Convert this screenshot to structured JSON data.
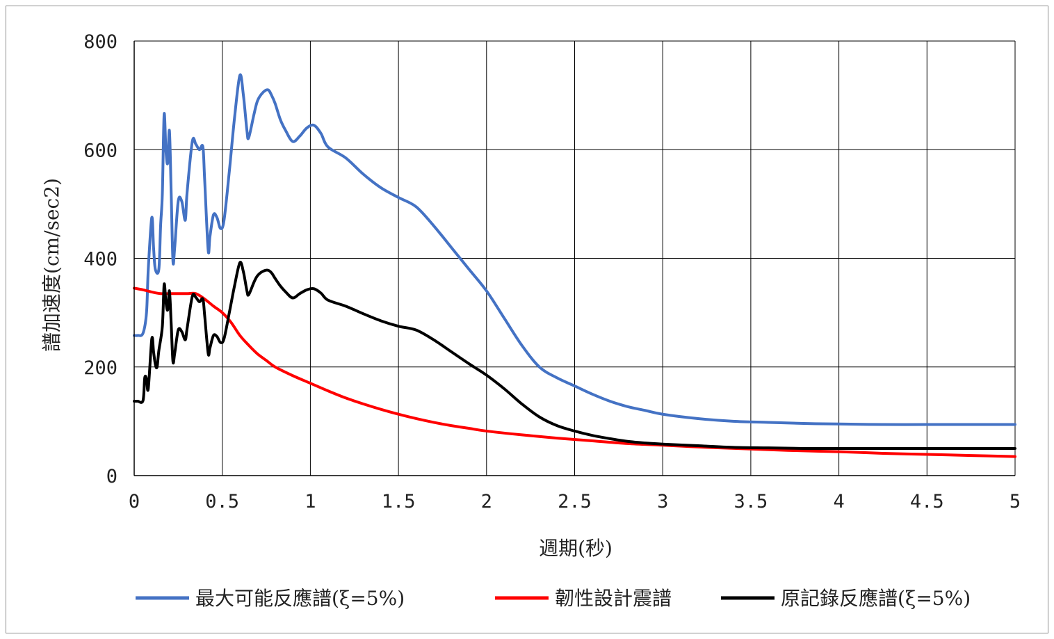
{
  "chart_data": {
    "type": "line",
    "title": "",
    "xlabel": "週期(秒)",
    "ylabel": "譜加速度(cm/sec2)",
    "xlim": [
      0,
      5
    ],
    "ylim": [
      0,
      800
    ],
    "x_ticks": [
      0,
      0.5,
      1,
      1.5,
      2,
      2.5,
      3,
      3.5,
      4,
      4.5,
      5
    ],
    "x_tick_labels": [
      "0",
      "0.5",
      "1",
      "1.5",
      "2",
      "2.5",
      "3",
      "3.5",
      "4",
      "4.5",
      "5"
    ],
    "y_ticks": [
      0,
      200,
      400,
      600,
      800
    ],
    "y_tick_labels": [
      "0",
      "200",
      "400",
      "600",
      "800"
    ],
    "grid": true,
    "legend_position": "bottom",
    "series": [
      {
        "name": "最大可能反應譜(ξ=5%)",
        "color": "#4472C4",
        "points": [
          [
            0,
            258
          ],
          [
            0.02,
            258
          ],
          [
            0.05,
            262
          ],
          [
            0.07,
            300
          ],
          [
            0.08,
            380
          ],
          [
            0.1,
            475
          ],
          [
            0.11,
            420
          ],
          [
            0.12,
            380
          ],
          [
            0.14,
            380
          ],
          [
            0.15,
            460
          ],
          [
            0.16,
            520
          ],
          [
            0.17,
            665
          ],
          [
            0.18,
            600
          ],
          [
            0.19,
            575
          ],
          [
            0.2,
            635
          ],
          [
            0.21,
            520
          ],
          [
            0.22,
            395
          ],
          [
            0.23,
            420
          ],
          [
            0.25,
            505
          ],
          [
            0.27,
            505
          ],
          [
            0.29,
            470
          ],
          [
            0.3,
            520
          ],
          [
            0.33,
            615
          ],
          [
            0.35,
            610
          ],
          [
            0.37,
            600
          ],
          [
            0.39,
            605
          ],
          [
            0.4,
            545
          ],
          [
            0.42,
            415
          ],
          [
            0.43,
            440
          ],
          [
            0.45,
            480
          ],
          [
            0.47,
            475
          ],
          [
            0.49,
            455
          ],
          [
            0.51,
            470
          ],
          [
            0.54,
            560
          ],
          [
            0.57,
            660
          ],
          [
            0.6,
            737
          ],
          [
            0.62,
            700
          ],
          [
            0.64,
            635
          ],
          [
            0.65,
            622
          ],
          [
            0.68,
            665
          ],
          [
            0.7,
            690
          ],
          [
            0.73,
            705
          ],
          [
            0.76,
            710
          ],
          [
            0.78,
            700
          ],
          [
            0.8,
            685
          ],
          [
            0.83,
            655
          ],
          [
            0.86,
            635
          ],
          [
            0.9,
            615
          ],
          [
            0.94,
            625
          ],
          [
            0.98,
            640
          ],
          [
            1.02,
            645
          ],
          [
            1.06,
            630
          ],
          [
            1.1,
            605
          ],
          [
            1.2,
            585
          ],
          [
            1.3,
            555
          ],
          [
            1.4,
            530
          ],
          [
            1.5,
            512
          ],
          [
            1.6,
            495
          ],
          [
            1.7,
            460
          ],
          [
            1.8,
            420
          ],
          [
            1.9,
            380
          ],
          [
            2.0,
            340
          ],
          [
            2.1,
            290
          ],
          [
            2.2,
            240
          ],
          [
            2.3,
            200
          ],
          [
            2.4,
            180
          ],
          [
            2.5,
            165
          ],
          [
            2.6,
            150
          ],
          [
            2.7,
            137
          ],
          [
            2.8,
            127
          ],
          [
            2.9,
            120
          ],
          [
            3.0,
            113
          ],
          [
            3.2,
            105
          ],
          [
            3.4,
            100
          ],
          [
            3.6,
            98
          ],
          [
            3.8,
            96
          ],
          [
            4.0,
            95
          ],
          [
            4.25,
            94
          ],
          [
            4.5,
            94
          ],
          [
            4.75,
            94
          ],
          [
            5.0,
            94
          ]
        ]
      },
      {
        "name": "韌性設計震譜",
        "color": "#FF0000",
        "points": [
          [
            0,
            345
          ],
          [
            0.05,
            342
          ],
          [
            0.1,
            338
          ],
          [
            0.15,
            335
          ],
          [
            0.2,
            335
          ],
          [
            0.25,
            335
          ],
          [
            0.3,
            335
          ],
          [
            0.35,
            335
          ],
          [
            0.4,
            325
          ],
          [
            0.45,
            312
          ],
          [
            0.5,
            300
          ],
          [
            0.55,
            282
          ],
          [
            0.6,
            258
          ],
          [
            0.65,
            240
          ],
          [
            0.7,
            224
          ],
          [
            0.75,
            212
          ],
          [
            0.8,
            200
          ],
          [
            0.9,
            184
          ],
          [
            1.0,
            170
          ],
          [
            1.1,
            156
          ],
          [
            1.2,
            143
          ],
          [
            1.3,
            132
          ],
          [
            1.4,
            122
          ],
          [
            1.5,
            113
          ],
          [
            1.6,
            105
          ],
          [
            1.7,
            98
          ],
          [
            1.8,
            92
          ],
          [
            1.9,
            87
          ],
          [
            2.0,
            82
          ],
          [
            2.2,
            75
          ],
          [
            2.4,
            69
          ],
          [
            2.6,
            64
          ],
          [
            2.8,
            59
          ],
          [
            3.0,
            56
          ],
          [
            3.25,
            52
          ],
          [
            3.5,
            49
          ],
          [
            3.75,
            46
          ],
          [
            4.0,
            44
          ],
          [
            4.25,
            41
          ],
          [
            4.5,
            39
          ],
          [
            4.75,
            37
          ],
          [
            5.0,
            35
          ]
        ]
      },
      {
        "name": "原記錄反應譜(ξ=5%)",
        "color": "#000000",
        "points": [
          [
            0,
            137
          ],
          [
            0.02,
            137
          ],
          [
            0.05,
            138
          ],
          [
            0.06,
            180
          ],
          [
            0.07,
            178
          ],
          [
            0.08,
            160
          ],
          [
            0.1,
            252
          ],
          [
            0.11,
            228
          ],
          [
            0.12,
            205
          ],
          [
            0.13,
            200
          ],
          [
            0.14,
            230
          ],
          [
            0.16,
            275
          ],
          [
            0.17,
            352
          ],
          [
            0.18,
            320
          ],
          [
            0.19,
            305
          ],
          [
            0.2,
            340
          ],
          [
            0.21,
            280
          ],
          [
            0.22,
            210
          ],
          [
            0.23,
            225
          ],
          [
            0.25,
            268
          ],
          [
            0.27,
            265
          ],
          [
            0.29,
            250
          ],
          [
            0.3,
            270
          ],
          [
            0.33,
            330
          ],
          [
            0.35,
            328
          ],
          [
            0.37,
            320
          ],
          [
            0.39,
            325
          ],
          [
            0.4,
            295
          ],
          [
            0.42,
            225
          ],
          [
            0.43,
            235
          ],
          [
            0.45,
            258
          ],
          [
            0.47,
            256
          ],
          [
            0.49,
            245
          ],
          [
            0.51,
            252
          ],
          [
            0.54,
            300
          ],
          [
            0.57,
            350
          ],
          [
            0.6,
            392
          ],
          [
            0.62,
            375
          ],
          [
            0.64,
            340
          ],
          [
            0.65,
            333
          ],
          [
            0.68,
            356
          ],
          [
            0.7,
            368
          ],
          [
            0.73,
            376
          ],
          [
            0.76,
            378
          ],
          [
            0.78,
            373
          ],
          [
            0.8,
            363
          ],
          [
            0.83,
            349
          ],
          [
            0.86,
            338
          ],
          [
            0.9,
            327
          ],
          [
            0.94,
            335
          ],
          [
            0.98,
            342
          ],
          [
            1.02,
            344
          ],
          [
            1.06,
            336
          ],
          [
            1.1,
            323
          ],
          [
            1.2,
            312
          ],
          [
            1.3,
            298
          ],
          [
            1.4,
            285
          ],
          [
            1.5,
            275
          ],
          [
            1.6,
            268
          ],
          [
            1.7,
            250
          ],
          [
            1.8,
            228
          ],
          [
            1.9,
            206
          ],
          [
            2.0,
            185
          ],
          [
            2.1,
            160
          ],
          [
            2.2,
            132
          ],
          [
            2.3,
            108
          ],
          [
            2.4,
            92
          ],
          [
            2.5,
            82
          ],
          [
            2.6,
            74
          ],
          [
            2.7,
            68
          ],
          [
            2.8,
            63
          ],
          [
            2.9,
            60
          ],
          [
            3.0,
            58
          ],
          [
            3.2,
            55
          ],
          [
            3.4,
            52
          ],
          [
            3.6,
            51
          ],
          [
            3.8,
            50
          ],
          [
            4.0,
            50
          ],
          [
            4.25,
            50
          ],
          [
            4.5,
            50
          ],
          [
            4.75,
            50
          ],
          [
            5.0,
            50
          ]
        ]
      }
    ]
  },
  "legend": {
    "items": [
      {
        "label": "最大可能反應譜(ξ=5%)",
        "color": "#4472C4"
      },
      {
        "label": "韌性設計震譜",
        "color": "#FF0000"
      },
      {
        "label": "原記錄反應譜(ξ=5%)",
        "color": "#000000"
      }
    ]
  },
  "colors": {
    "grid": "#000000",
    "axis": "#000000",
    "text": "#222222"
  }
}
